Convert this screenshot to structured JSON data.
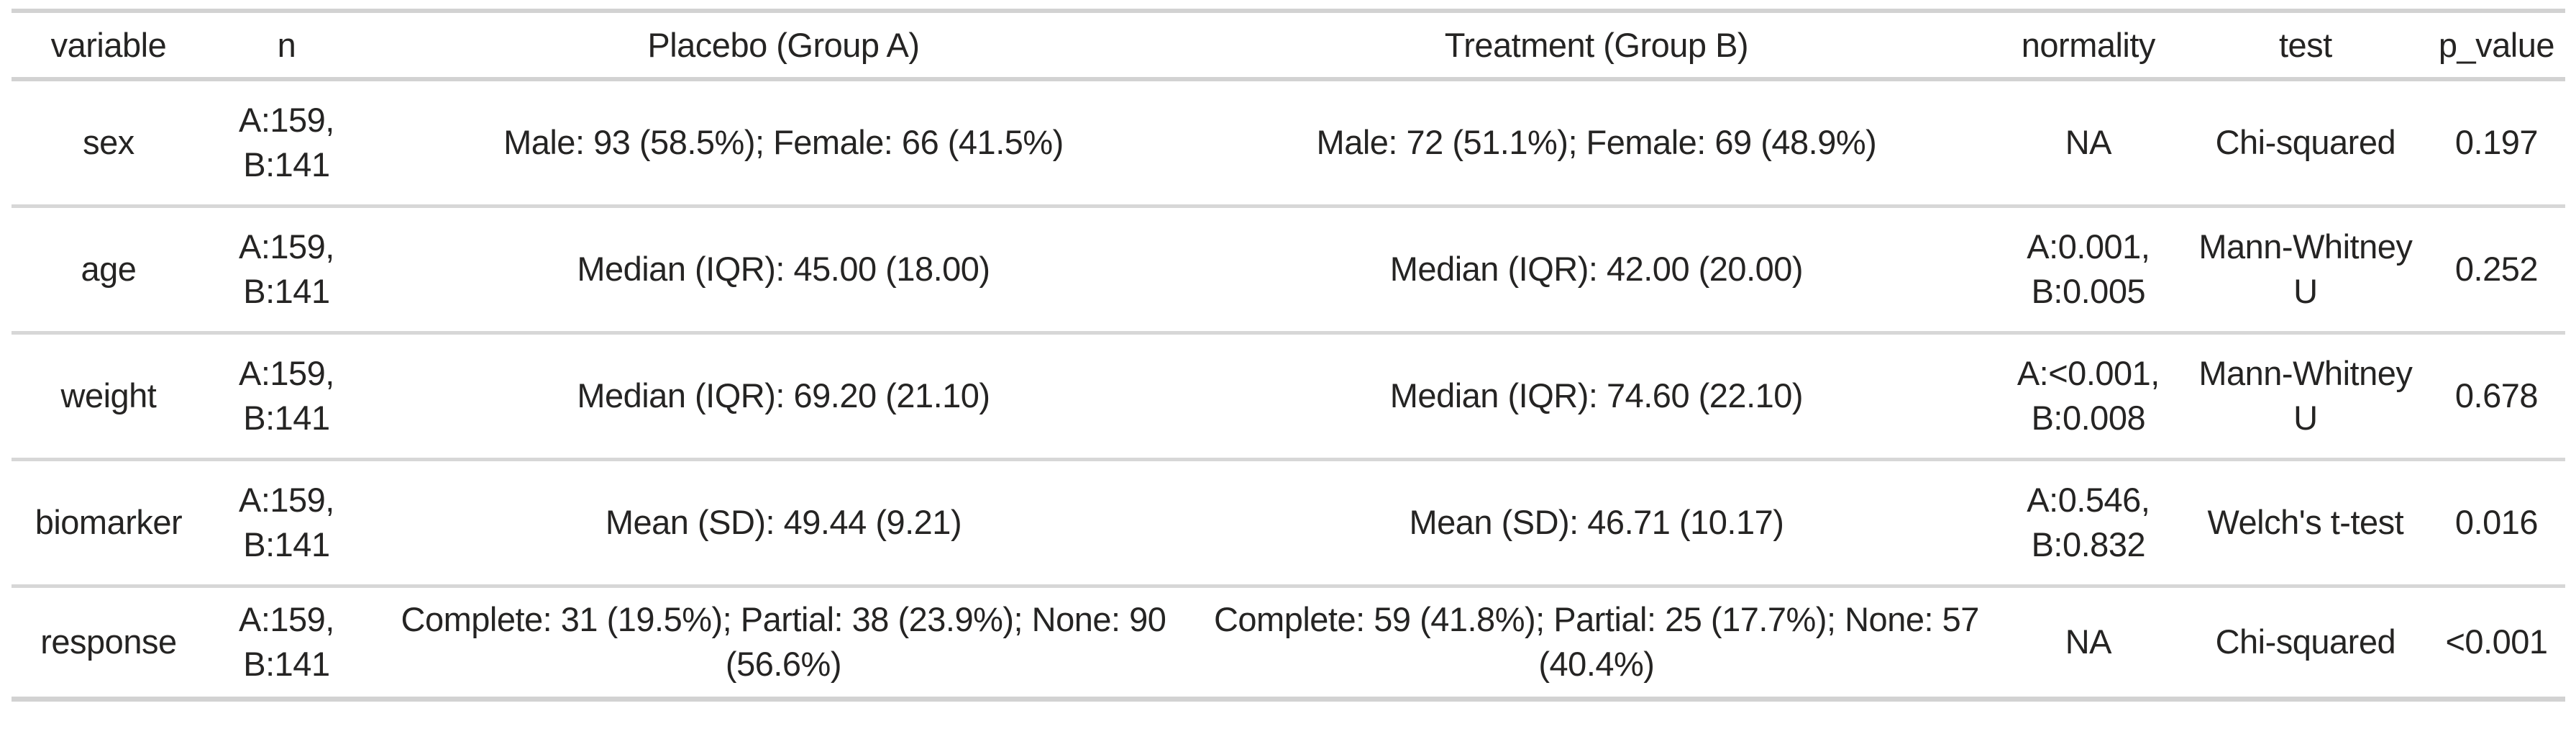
{
  "colors": {
    "background": "#ffffff",
    "text": "#252423",
    "separator_outer": "#d2d2d2",
    "separator_inner": "#d7d7d7"
  },
  "table": {
    "header": [
      "variable",
      "n",
      "Placebo (Group A)",
      "Treatment (Group B)",
      "normality",
      "test",
      "p_value"
    ],
    "rows": [
      [
        "sex",
        "A:159,\nB:141",
        "Male: 93 (58.5%); Female: 66 (41.5%)",
        "Male: 72 (51.1%); Female: 69 (48.9%)",
        "NA",
        "Chi-squared",
        "0.197"
      ],
      [
        "age",
        "A:159,\nB:141",
        "Median (IQR): 45.00 (18.00)",
        "Median (IQR): 42.00 (20.00)",
        "A:0.001,\nB:0.005",
        "Mann-Whitney\nU",
        "0.252"
      ],
      [
        "weight",
        "A:159,\nB:141",
        "Median (IQR): 69.20 (21.10)",
        "Median (IQR): 74.60 (22.10)",
        "A:<0.001,\nB:0.008",
        "Mann-Whitney\nU",
        "0.678"
      ],
      [
        "biomarker",
        "A:159,\nB:141",
        "Mean (SD): 49.44 (9.21)",
        "Mean (SD): 46.71 (10.17)",
        "A:0.546,\nB:0.832",
        "Welch's t-test",
        "0.016"
      ],
      [
        "response",
        "A:159,\nB:141",
        "Complete: 31 (19.5%); Partial: 38 (23.9%); None: 90\n(56.6%)",
        "Complete: 59 (41.8%); Partial: 25 (17.7%); None: 57\n(40.4%)",
        "NA",
        "Chi-squared",
        "<0.001"
      ]
    ]
  },
  "chart_data": {
    "type": "table",
    "columns": [
      "variable",
      "n",
      "Placebo (Group A)",
      "Treatment (Group B)",
      "normality",
      "test",
      "p_value"
    ],
    "rows": [
      [
        "sex",
        "A:159, B:141",
        "Male: 93 (58.5%); Female: 66 (41.5%)",
        "Male: 72 (51.1%); Female: 69 (48.9%)",
        "NA",
        "Chi-squared",
        "0.197"
      ],
      [
        "age",
        "A:159, B:141",
        "Median (IQR): 45.00 (18.00)",
        "Median (IQR): 42.00 (20.00)",
        "A:0.001, B:0.005",
        "Mann-Whitney U",
        "0.252"
      ],
      [
        "weight",
        "A:159, B:141",
        "Median (IQR): 69.20 (21.10)",
        "Median (IQR): 74.60 (22.10)",
        "A:<0.001, B:0.008",
        "Mann-Whitney U",
        "0.678"
      ],
      [
        "biomarker",
        "A:159, B:141",
        "Mean (SD): 49.44 (9.21)",
        "Mean (SD): 46.71 (10.17)",
        "A:0.546, B:0.832",
        "Welch's t-test",
        "0.016"
      ],
      [
        "response",
        "A:159, B:141",
        "Complete: 31 (19.5%); Partial: 38 (23.9%); None: 90 (56.6%)",
        "Complete: 59 (41.8%); Partial: 25 (17.7%); None: 57 (40.4%)",
        "NA",
        "Chi-squared",
        "<0.001"
      ]
    ]
  }
}
